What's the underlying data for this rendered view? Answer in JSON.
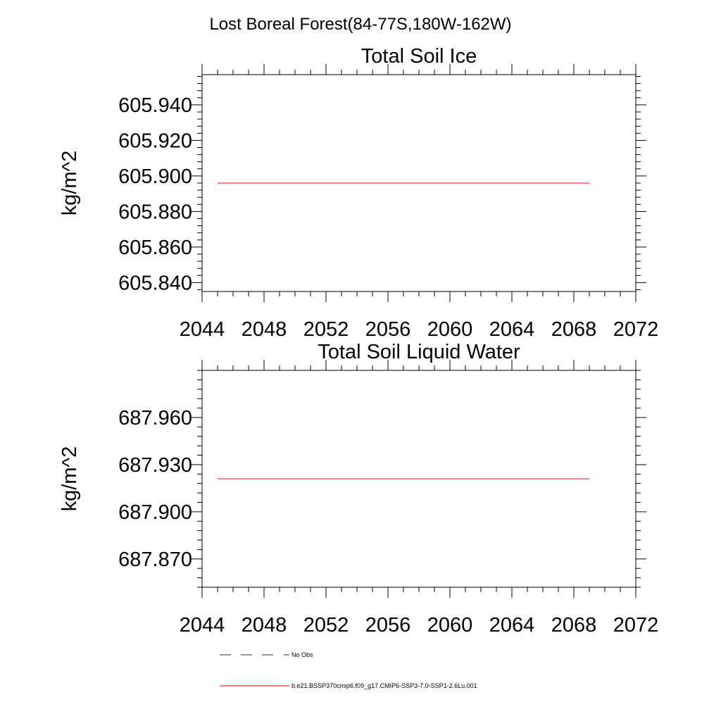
{
  "figure_title": "Lost Boreal Forest(84-77S,180W-162W)",
  "legend": [
    {
      "label": "No Obs",
      "style": "dashed",
      "color": "#2a2a6e"
    },
    {
      "label": "b.e21.BSSP370cmip6.f09_g17.CMIP6-SSP3-7.0-SSP1-2.6Lu.001",
      "style": "solid",
      "color": "#ff0000"
    }
  ],
  "chart_data": [
    {
      "type": "line",
      "title": "Total Soil Ice",
      "xlabel": "",
      "ylabel": "kg/m^2",
      "xlim": [
        2044,
        2072
      ],
      "ylim": [
        605.835,
        605.957
      ],
      "x_ticks": [
        "2044",
        "2048",
        "2052",
        "2056",
        "2060",
        "2064",
        "2068",
        "2072"
      ],
      "y_ticks": [
        "605.840",
        "605.860",
        "605.880",
        "605.900",
        "605.920",
        "605.940"
      ],
      "series": [
        {
          "name": "b.e21.BSSP370cmip6.f09_g17.CMIP6-SSP3-7.0-SSP1-2.6Lu.001",
          "color": "#ff0000",
          "x": [
            2045,
            2069
          ],
          "y": [
            605.896,
            605.896
          ]
        }
      ]
    },
    {
      "type": "line",
      "title": "Total Soil Liquid Water",
      "xlabel": "",
      "ylabel": "kg/m^2",
      "xlim": [
        2044,
        2072
      ],
      "ylim": [
        687.852,
        687.99
      ],
      "x_ticks": [
        "2044",
        "2048",
        "2052",
        "2056",
        "2060",
        "2064",
        "2068",
        "2072"
      ],
      "y_ticks": [
        "687.870",
        "687.900",
        "687.930",
        "687.960"
      ],
      "series": [
        {
          "name": "b.e21.BSSP370cmip6.f09_g17.CMIP6-SSP3-7.0-SSP1-2.6Lu.001",
          "color": "#ff0000",
          "x": [
            2045,
            2069
          ],
          "y": [
            687.921,
            687.921
          ]
        }
      ]
    }
  ]
}
